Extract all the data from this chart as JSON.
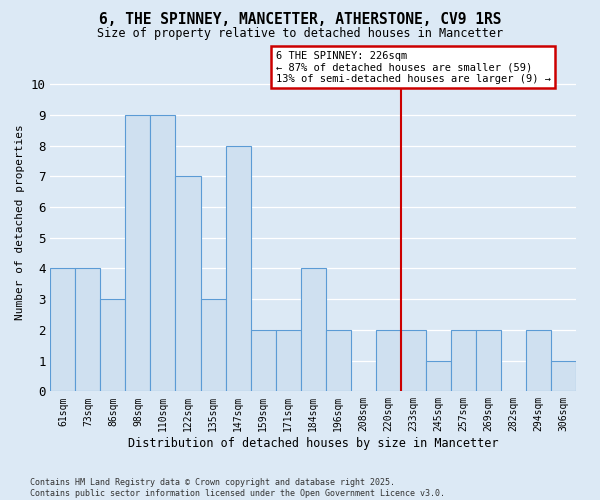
{
  "title": "6, THE SPINNEY, MANCETTER, ATHERSTONE, CV9 1RS",
  "subtitle": "Size of property relative to detached houses in Mancetter",
  "xlabel": "Distribution of detached houses by size in Mancetter",
  "ylabel": "Number of detached properties",
  "bin_labels": [
    "61sqm",
    "73sqm",
    "86sqm",
    "98sqm",
    "110sqm",
    "122sqm",
    "135sqm",
    "147sqm",
    "159sqm",
    "171sqm",
    "184sqm",
    "196sqm",
    "208sqm",
    "220sqm",
    "233sqm",
    "245sqm",
    "257sqm",
    "269sqm",
    "282sqm",
    "294sqm",
    "306sqm"
  ],
  "values": [
    4,
    4,
    3,
    9,
    9,
    7,
    3,
    8,
    2,
    2,
    4,
    2,
    0,
    2,
    2,
    1,
    2,
    2,
    0,
    2,
    1
  ],
  "bar_color": "#cfe0f0",
  "bar_edge_color": "#5b9bd5",
  "annotation_text": "6 THE SPINNEY: 226sqm\n← 87% of detached houses are smaller (59)\n13% of semi-detached houses are larger (9) →",
  "annotation_box_color": "#ffffff",
  "annotation_box_edge_color": "#cc0000",
  "line_color": "#cc0000",
  "bg_color": "#dce9f5",
  "grid_color": "#ffffff",
  "ylim": [
    0,
    11
  ],
  "footer": "Contains HM Land Registry data © Crown copyright and database right 2025.\nContains public sector information licensed under the Open Government Licence v3.0."
}
